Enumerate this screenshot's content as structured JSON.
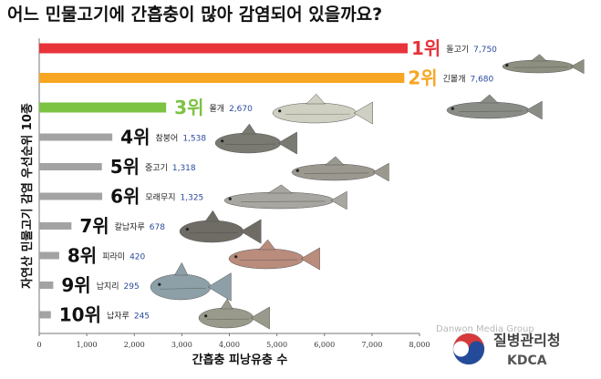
{
  "chart_data": {
    "type": "bar",
    "orientation": "horizontal",
    "title": "어느 민물고기에 간흡충이 많아 감염되어 있을까요?",
    "ylabel": "자연산 민물고기 감염 우선순위 10종",
    "xlabel": "간흡충 피낭유충 수",
    "xlim": [
      0,
      8000
    ],
    "xticks": [
      "0",
      "1,000",
      "2,000",
      "3,000",
      "4,000",
      "5,000",
      "6,000",
      "7,000",
      "8,000"
    ],
    "grid": false,
    "legend": "none",
    "bars": [
      {
        "rank": "1위",
        "name": "돌고기",
        "value_label": "7,750",
        "value": 7750,
        "color": "#e8333b"
      },
      {
        "rank": "2위",
        "name": "긴몰개",
        "value_label": "7,680",
        "value": 7680,
        "color": "#f6a623"
      },
      {
        "rank": "3위",
        "name": "몰개",
        "value_label": "2,670",
        "value": 2670,
        "color": "#7cc243"
      },
      {
        "rank": "4위",
        "name": "참붕어",
        "value_label": "1,538",
        "value": 1538,
        "color": "#a3a3a3"
      },
      {
        "rank": "5위",
        "name": "중고기",
        "value_label": "1,318",
        "value": 1318,
        "color": "#a3a3a3"
      },
      {
        "rank": "6위",
        "name": "모래무지",
        "value_label": "1,325",
        "value": 1325,
        "color": "#a3a3a3"
      },
      {
        "rank": "7위",
        "name": "칼납자루",
        "value_label": "678",
        "value": 678,
        "color": "#a3a3a3"
      },
      {
        "rank": "8위",
        "name": "피라미",
        "value_label": "420",
        "value": 420,
        "color": "#a3a3a3"
      },
      {
        "rank": "9위",
        "name": "납지리",
        "value_label": "295",
        "value": 295,
        "color": "#a3a3a3"
      },
      {
        "rank": "10위",
        "name": "납자루",
        "value_label": "245",
        "value": 245,
        "color": "#a3a3a3"
      }
    ],
    "rank_colors": {
      "1위": "#e8333b",
      "2위": "#f6a623",
      "3위": "#7cc243",
      "other": "#111111"
    }
  },
  "watermark": "Danwon Media Group",
  "logo": {
    "korean": "질병관리청",
    "english": "KDCA"
  }
}
